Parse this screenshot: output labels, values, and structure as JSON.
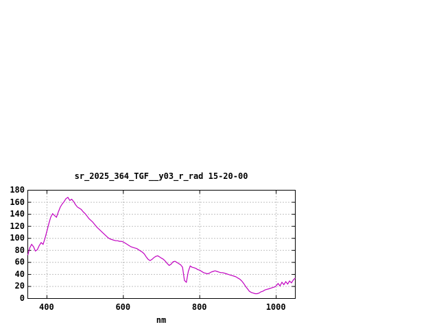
{
  "page": {
    "background": "#ffffff"
  },
  "chart_data": {
    "type": "line",
    "title": "sr_2025_364_TGF__y03_r_rad 15-20-00",
    "xlabel": "nm",
    "ylabel": "",
    "xlim": [
      350,
      1050
    ],
    "ylim": [
      0,
      180
    ],
    "xticks": [
      400,
      600,
      800,
      1000
    ],
    "yticks": [
      0,
      20,
      40,
      60,
      80,
      100,
      120,
      140,
      160,
      180
    ],
    "grid": true,
    "legend": false,
    "line_color": "#c000c0",
    "x": [
      350,
      355,
      360,
      365,
      370,
      375,
      380,
      385,
      390,
      395,
      400,
      405,
      410,
      415,
      420,
      425,
      430,
      435,
      440,
      445,
      450,
      455,
      460,
      465,
      470,
      475,
      480,
      485,
      490,
      495,
      500,
      505,
      510,
      515,
      520,
      525,
      530,
      535,
      540,
      545,
      550,
      555,
      560,
      565,
      570,
      575,
      580,
      585,
      590,
      595,
      600,
      605,
      610,
      615,
      620,
      625,
      630,
      635,
      640,
      645,
      650,
      655,
      660,
      665,
      670,
      675,
      680,
      685,
      690,
      695,
      700,
      705,
      710,
      715,
      720,
      725,
      730,
      735,
      740,
      745,
      750,
      755,
      760,
      765,
      770,
      775,
      780,
      785,
      790,
      795,
      800,
      805,
      810,
      815,
      820,
      825,
      830,
      835,
      840,
      845,
      850,
      855,
      860,
      865,
      870,
      875,
      880,
      885,
      890,
      895,
      900,
      905,
      910,
      915,
      920,
      925,
      930,
      935,
      940,
      945,
      950,
      955,
      960,
      965,
      970,
      975,
      980,
      985,
      990,
      995,
      1000,
      1005,
      1010,
      1015,
      1020,
      1025,
      1030,
      1035,
      1040,
      1045,
      1050
    ],
    "y": [
      72,
      84,
      90,
      86,
      79,
      81,
      88,
      93,
      90,
      100,
      112,
      124,
      135,
      141,
      138,
      135,
      144,
      152,
      157,
      161,
      166,
      168,
      163,
      165,
      161,
      156,
      152,
      150,
      148,
      144,
      141,
      137,
      133,
      130,
      127,
      123,
      119,
      116,
      113,
      110,
      107,
      104,
      101,
      99,
      98,
      97,
      96,
      96,
      95,
      95,
      94,
      92,
      90,
      88,
      86,
      85,
      84,
      83,
      81,
      79,
      77,
      74,
      69,
      65,
      63,
      65,
      68,
      70,
      71,
      69,
      67,
      65,
      62,
      58,
      55,
      57,
      61,
      62,
      60,
      58,
      56,
      52,
      30,
      27,
      45,
      54,
      52,
      51,
      50,
      48,
      47,
      45,
      43,
      42,
      41,
      42,
      44,
      45,
      46,
      45,
      44,
      43,
      43,
      42,
      41,
      40,
      39,
      38,
      37,
      36,
      34,
      32,
      29,
      25,
      20,
      16,
      12,
      10,
      9,
      8,
      8,
      9,
      11,
      12,
      14,
      15,
      16,
      17,
      18,
      19,
      21,
      25,
      21,
      27,
      23,
      28,
      24,
      29,
      26,
      31,
      34
    ]
  }
}
